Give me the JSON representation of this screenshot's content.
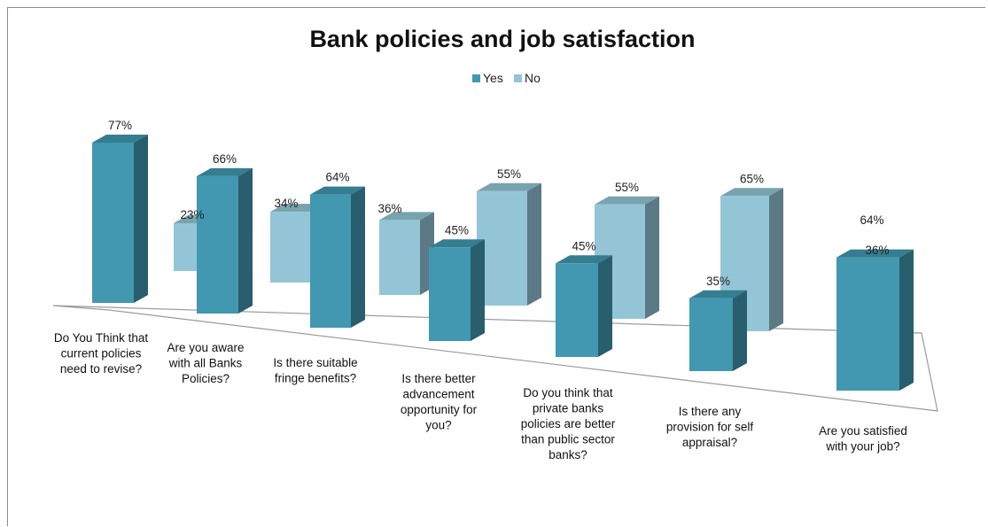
{
  "chart_data": {
    "type": "bar",
    "title": "Bank policies and job satisfaction",
    "xlabel": "",
    "ylabel": "",
    "ylim": [
      0,
      100
    ],
    "grid": false,
    "legend": "top-center",
    "categories": [
      "Do You Think that current policies need to revise?",
      "Are you aware with all Banks Policies?",
      "Is there suitable fringe benefits?",
      "Is there better advancement opportunity for you?",
      "Do you think that private banks policies are better than public sector banks?",
      "Is there any provision for self appraisal?",
      "Are you satisfied with your job?"
    ],
    "category_lines": [
      [
        "Do You Think that",
        "current policies",
        "need to revise?"
      ],
      [
        "Are you aware",
        "with all Banks",
        "Policies?"
      ],
      [
        "Is there suitable",
        "fringe benefits?"
      ],
      [
        "Is there better",
        "advancement",
        "opportunity for",
        "you?"
      ],
      [
        "Do you think that",
        "private banks",
        "policies are better",
        "than public sector",
        "banks?"
      ],
      [
        "Is there any",
        "provision for self",
        "appraisal?"
      ],
      [
        "Are you satisfied",
        "with your job?"
      ]
    ],
    "series": [
      {
        "name": "Yes",
        "values": [
          77,
          66,
          64,
          45,
          45,
          35,
          64
        ],
        "labels": [
          "77%",
          "66%",
          "64%",
          "45%",
          "45%",
          "35%",
          "64%"
        ],
        "color": "#4198b0"
      },
      {
        "name": "No",
        "values": [
          23,
          34,
          36,
          55,
          55,
          65,
          36
        ],
        "labels": [
          "23%",
          "34%",
          "36%",
          "55%",
          "55%",
          "65%",
          "36%"
        ],
        "color": "#93c5d6"
      }
    ]
  }
}
